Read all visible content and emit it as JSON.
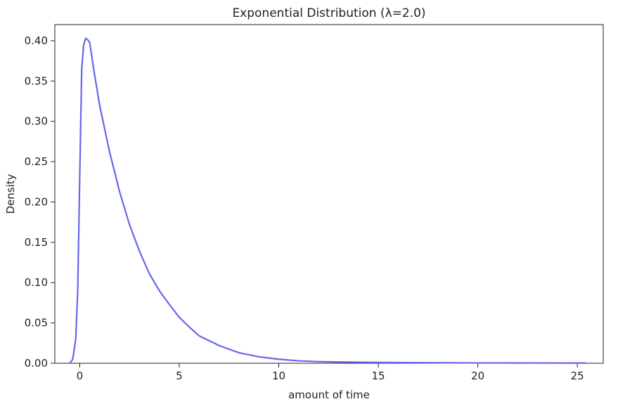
{
  "chart_data": {
    "type": "line",
    "title": "Exponential Distribution (λ=2.0)",
    "xlabel": "amount of time",
    "ylabel": "Density",
    "xlim": [
      -1.25,
      26.3
    ],
    "ylim": [
      0.0,
      0.42
    ],
    "xticks": [
      0,
      5,
      10,
      15,
      20,
      25
    ],
    "xtick_labels": [
      "0",
      "5",
      "10",
      "15",
      "20",
      "25"
    ],
    "yticks": [
      0.0,
      0.05,
      0.1,
      0.15,
      0.2,
      0.25,
      0.3,
      0.35,
      0.4
    ],
    "ytick_labels": [
      "0.00",
      "0.05",
      "0.10",
      "0.15",
      "0.20",
      "0.25",
      "0.30",
      "0.35",
      "0.40"
    ],
    "grid": false,
    "legend": "none",
    "series": [
      {
        "color": "#6666ee",
        "x": [
          -0.5,
          -0.35,
          -0.2,
          -0.1,
          0.0,
          0.1,
          0.2,
          0.3,
          0.4,
          0.5,
          0.7,
          1.0,
          1.5,
          2.0,
          2.5,
          3.0,
          3.5,
          4.0,
          4.5,
          5.0,
          5.5,
          6.0,
          7.0,
          8.0,
          9.0,
          10.0,
          11.0,
          12.0,
          13.0,
          15.0,
          18.0,
          20.0,
          22.0,
          25.4
        ],
        "y": [
          0.0,
          0.005,
          0.03,
          0.09,
          0.23,
          0.365,
          0.395,
          0.403,
          0.401,
          0.398,
          0.365,
          0.32,
          0.262,
          0.213,
          0.172,
          0.139,
          0.111,
          0.09,
          0.073,
          0.057,
          0.045,
          0.034,
          0.022,
          0.013,
          0.008,
          0.005,
          0.003,
          0.002,
          0.0015,
          0.001,
          0.0006,
          0.0004,
          0.0003,
          0.0002
        ]
      }
    ]
  }
}
